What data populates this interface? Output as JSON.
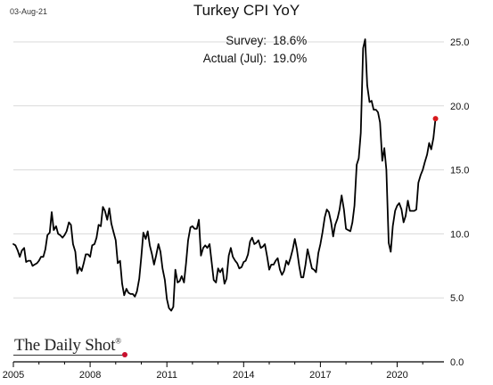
{
  "header": {
    "date_stamp": "03-Aug-21",
    "title": "Turkey CPI YoY"
  },
  "annotations": [
    {
      "label": "Survey:",
      "value": "18.6%"
    },
    {
      "label": "Actual (Jul):",
      "value": "19.0%"
    }
  ],
  "branding": {
    "logo_text": "The Daily Shot",
    "registered_mark": "®"
  },
  "colors": {
    "line": "#000000",
    "highlight_point": "#d7191c",
    "grid": "#d9d9d9"
  },
  "chart_data": {
    "type": "line",
    "title": "Turkey CPI YoY",
    "xlabel": "",
    "ylabel": "",
    "x_range": [
      2005,
      2021.83
    ],
    "ylim": [
      0,
      25.5
    ],
    "x_ticks": [
      2005,
      2008,
      2011,
      2014,
      2017,
      2020
    ],
    "y_ticks": [
      "0.0",
      "5.0",
      "10.0",
      "15.0",
      "20.0",
      "25.0"
    ],
    "y_axis_position": "right",
    "grid": "horizontal",
    "series": [
      {
        "values": [
          [
            2005.0,
            9.2
          ],
          [
            2005.08,
            9.1
          ],
          [
            2005.17,
            8.7
          ],
          [
            2005.25,
            8.2
          ],
          [
            2005.33,
            8.7
          ],
          [
            2005.42,
            8.9
          ],
          [
            2005.5,
            7.8
          ],
          [
            2005.58,
            7.9
          ],
          [
            2005.67,
            7.9
          ],
          [
            2005.75,
            7.5
          ],
          [
            2005.83,
            7.6
          ],
          [
            2005.92,
            7.7
          ],
          [
            2006.0,
            7.9
          ],
          [
            2006.08,
            8.2
          ],
          [
            2006.17,
            8.2
          ],
          [
            2006.25,
            8.8
          ],
          [
            2006.33,
            9.9
          ],
          [
            2006.42,
            10.1
          ],
          [
            2006.5,
            11.7
          ],
          [
            2006.58,
            10.3
          ],
          [
            2006.67,
            10.6
          ],
          [
            2006.75,
            10.0
          ],
          [
            2006.83,
            9.9
          ],
          [
            2006.92,
            9.7
          ],
          [
            2007.0,
            9.9
          ],
          [
            2007.08,
            10.2
          ],
          [
            2007.17,
            10.9
          ],
          [
            2007.25,
            10.7
          ],
          [
            2007.33,
            9.2
          ],
          [
            2007.42,
            8.6
          ],
          [
            2007.5,
            6.9
          ],
          [
            2007.58,
            7.4
          ],
          [
            2007.67,
            7.1
          ],
          [
            2007.75,
            7.7
          ],
          [
            2007.83,
            8.4
          ],
          [
            2007.92,
            8.4
          ],
          [
            2008.0,
            8.2
          ],
          [
            2008.08,
            9.1
          ],
          [
            2008.17,
            9.2
          ],
          [
            2008.25,
            9.7
          ],
          [
            2008.33,
            10.7
          ],
          [
            2008.42,
            10.6
          ],
          [
            2008.5,
            12.1
          ],
          [
            2008.58,
            11.8
          ],
          [
            2008.67,
            11.1
          ],
          [
            2008.75,
            12.0
          ],
          [
            2008.83,
            10.8
          ],
          [
            2008.92,
            10.1
          ],
          [
            2009.0,
            9.5
          ],
          [
            2009.08,
            7.7
          ],
          [
            2009.17,
            7.9
          ],
          [
            2009.25,
            6.1
          ],
          [
            2009.33,
            5.2
          ],
          [
            2009.42,
            5.7
          ],
          [
            2009.5,
            5.4
          ],
          [
            2009.58,
            5.3
          ],
          [
            2009.67,
            5.3
          ],
          [
            2009.75,
            5.1
          ],
          [
            2009.83,
            5.5
          ],
          [
            2009.92,
            6.5
          ],
          [
            2010.0,
            8.2
          ],
          [
            2010.08,
            10.1
          ],
          [
            2010.17,
            9.6
          ],
          [
            2010.25,
            10.2
          ],
          [
            2010.33,
            9.1
          ],
          [
            2010.42,
            8.4
          ],
          [
            2010.5,
            7.6
          ],
          [
            2010.58,
            8.3
          ],
          [
            2010.67,
            9.2
          ],
          [
            2010.75,
            8.6
          ],
          [
            2010.83,
            7.3
          ],
          [
            2010.92,
            6.4
          ],
          [
            2011.0,
            4.9
          ],
          [
            2011.08,
            4.2
          ],
          [
            2011.17,
            4.0
          ],
          [
            2011.25,
            4.3
          ],
          [
            2011.33,
            7.2
          ],
          [
            2011.42,
            6.2
          ],
          [
            2011.5,
            6.3
          ],
          [
            2011.58,
            6.7
          ],
          [
            2011.67,
            6.2
          ],
          [
            2011.75,
            7.7
          ],
          [
            2011.83,
            9.5
          ],
          [
            2011.92,
            10.5
          ],
          [
            2012.0,
            10.6
          ],
          [
            2012.08,
            10.4
          ],
          [
            2012.17,
            10.4
          ],
          [
            2012.25,
            11.1
          ],
          [
            2012.33,
            8.3
          ],
          [
            2012.42,
            8.9
          ],
          [
            2012.5,
            9.1
          ],
          [
            2012.58,
            8.9
          ],
          [
            2012.67,
            9.2
          ],
          [
            2012.75,
            7.8
          ],
          [
            2012.83,
            6.4
          ],
          [
            2012.92,
            6.2
          ],
          [
            2013.0,
            7.3
          ],
          [
            2013.08,
            7.0
          ],
          [
            2013.17,
            7.3
          ],
          [
            2013.25,
            6.1
          ],
          [
            2013.33,
            6.5
          ],
          [
            2013.42,
            8.3
          ],
          [
            2013.5,
            8.9
          ],
          [
            2013.58,
            8.2
          ],
          [
            2013.67,
            7.9
          ],
          [
            2013.75,
            7.7
          ],
          [
            2013.83,
            7.3
          ],
          [
            2013.92,
            7.4
          ],
          [
            2014.0,
            7.8
          ],
          [
            2014.08,
            7.9
          ],
          [
            2014.17,
            8.4
          ],
          [
            2014.25,
            9.4
          ],
          [
            2014.33,
            9.7
          ],
          [
            2014.42,
            9.2
          ],
          [
            2014.5,
            9.3
          ],
          [
            2014.58,
            9.5
          ],
          [
            2014.67,
            8.9
          ],
          [
            2014.75,
            9.0
          ],
          [
            2014.83,
            9.2
          ],
          [
            2014.92,
            8.2
          ],
          [
            2015.0,
            7.2
          ],
          [
            2015.08,
            7.6
          ],
          [
            2015.17,
            7.6
          ],
          [
            2015.25,
            7.9
          ],
          [
            2015.33,
            8.1
          ],
          [
            2015.42,
            7.2
          ],
          [
            2015.5,
            6.8
          ],
          [
            2015.58,
            7.1
          ],
          [
            2015.67,
            7.9
          ],
          [
            2015.75,
            7.6
          ],
          [
            2015.83,
            8.1
          ],
          [
            2015.92,
            8.8
          ],
          [
            2016.0,
            9.6
          ],
          [
            2016.08,
            8.8
          ],
          [
            2016.17,
            7.5
          ],
          [
            2016.25,
            6.6
          ],
          [
            2016.33,
            6.6
          ],
          [
            2016.42,
            7.6
          ],
          [
            2016.5,
            8.8
          ],
          [
            2016.58,
            8.1
          ],
          [
            2016.67,
            7.3
          ],
          [
            2016.75,
            7.2
          ],
          [
            2016.83,
            7.0
          ],
          [
            2016.92,
            8.5
          ],
          [
            2017.0,
            9.2
          ],
          [
            2017.08,
            10.1
          ],
          [
            2017.17,
            11.3
          ],
          [
            2017.25,
            11.9
          ],
          [
            2017.33,
            11.7
          ],
          [
            2017.42,
            10.9
          ],
          [
            2017.5,
            9.8
          ],
          [
            2017.58,
            10.7
          ],
          [
            2017.67,
            11.2
          ],
          [
            2017.75,
            11.9
          ],
          [
            2017.83,
            13.0
          ],
          [
            2017.92,
            11.9
          ],
          [
            2018.0,
            10.4
          ],
          [
            2018.08,
            10.3
          ],
          [
            2018.17,
            10.2
          ],
          [
            2018.25,
            10.9
          ],
          [
            2018.33,
            12.2
          ],
          [
            2018.42,
            15.4
          ],
          [
            2018.5,
            15.9
          ],
          [
            2018.58,
            17.9
          ],
          [
            2018.67,
            24.5
          ],
          [
            2018.75,
            25.2
          ],
          [
            2018.83,
            21.6
          ],
          [
            2018.92,
            20.3
          ],
          [
            2019.0,
            20.4
          ],
          [
            2019.08,
            19.7
          ],
          [
            2019.17,
            19.7
          ],
          [
            2019.25,
            19.5
          ],
          [
            2019.33,
            18.7
          ],
          [
            2019.42,
            15.7
          ],
          [
            2019.5,
            16.7
          ],
          [
            2019.58,
            15.0
          ],
          [
            2019.67,
            9.3
          ],
          [
            2019.75,
            8.6
          ],
          [
            2019.83,
            10.6
          ],
          [
            2019.92,
            11.8
          ],
          [
            2020.0,
            12.2
          ],
          [
            2020.08,
            12.4
          ],
          [
            2020.17,
            11.9
          ],
          [
            2020.25,
            10.9
          ],
          [
            2020.33,
            11.4
          ],
          [
            2020.42,
            12.6
          ],
          [
            2020.5,
            11.8
          ],
          [
            2020.58,
            11.8
          ],
          [
            2020.67,
            11.8
          ],
          [
            2020.75,
            11.9
          ],
          [
            2020.83,
            14.0
          ],
          [
            2020.92,
            14.6
          ],
          [
            2021.0,
            15.0
          ],
          [
            2021.08,
            15.6
          ],
          [
            2021.17,
            16.2
          ],
          [
            2021.25,
            17.1
          ],
          [
            2021.33,
            16.6
          ],
          [
            2021.42,
            17.5
          ],
          [
            2021.5,
            19.0
          ]
        ]
      }
    ],
    "highlight_point": {
      "x": 2021.5,
      "y": 19.0
    }
  }
}
